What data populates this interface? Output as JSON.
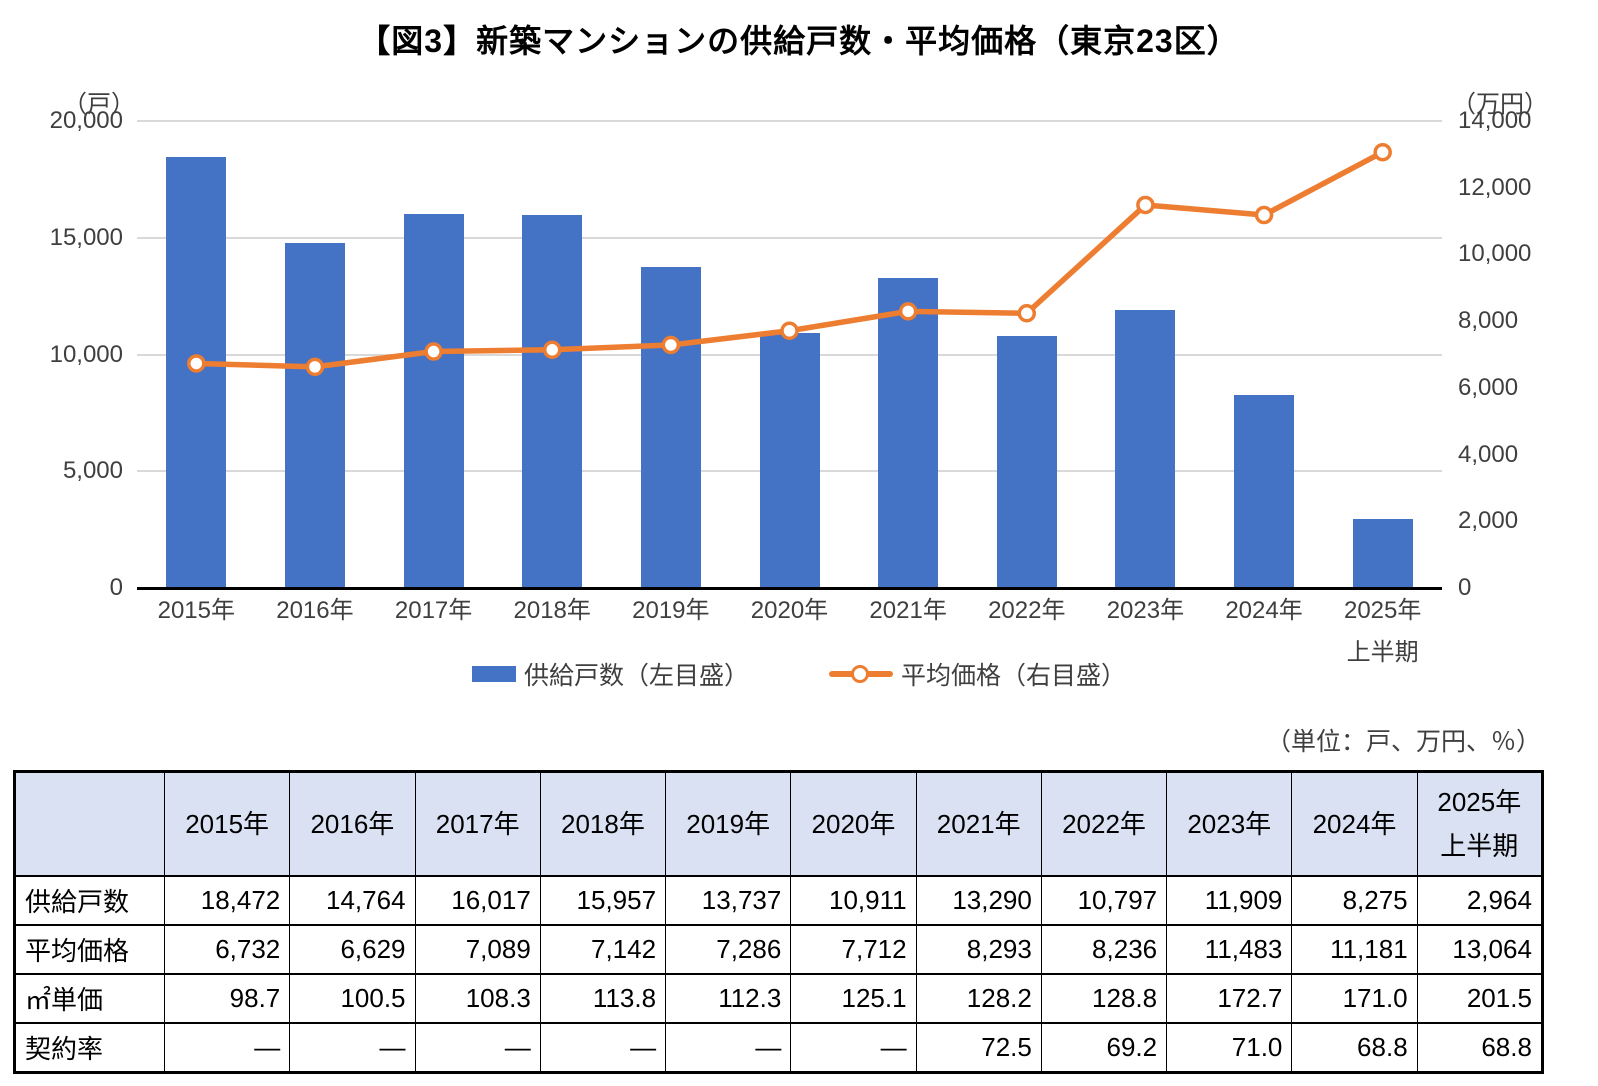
{
  "title": "【図3】新築マンションの供給戸数・平均価格（東京23区）",
  "chart_data": {
    "type": "combo_bar_line",
    "categories": [
      "2015年",
      "2016年",
      "2017年",
      "2018年",
      "2019年",
      "2020年",
      "2021年",
      "2022年",
      "2023年",
      "2024年",
      "2025年\n上半期"
    ],
    "series": [
      {
        "name": "供給戸数（左目盛）",
        "type": "bar",
        "axis": "left",
        "color": "#4472C4",
        "values": [
          18472,
          14764,
          16017,
          15957,
          13737,
          10911,
          13290,
          10797,
          11909,
          8275,
          2964
        ]
      },
      {
        "name": "平均価格（右目盛）",
        "type": "line",
        "axis": "right",
        "color": "#ED7D31",
        "marker": "open-circle",
        "values": [
          6732,
          6629,
          7089,
          7142,
          7286,
          7712,
          8293,
          8236,
          11483,
          11181,
          13064
        ]
      }
    ],
    "left_axis": {
      "unit": "（戸）",
      "min": 0,
      "max": 20000,
      "step": 5000
    },
    "right_axis": {
      "unit": "（万円）",
      "min": 0,
      "max": 14000,
      "step": 2000
    },
    "grid": "horizontal",
    "gridline_color": "#D9D9D9",
    "legend_position": "bottom"
  },
  "table": {
    "unit_note": "（単位：戸、万円、％）",
    "header_bg": "#D9E1F2",
    "columns": [
      "2015年",
      "2016年",
      "2017年",
      "2018年",
      "2019年",
      "2020年",
      "2021年",
      "2022年",
      "2023年",
      "2024年",
      "2025年\n上半期"
    ],
    "rows": [
      {
        "label": "供給戸数",
        "values": [
          "18,472",
          "14,764",
          "16,017",
          "15,957",
          "13,737",
          "10,911",
          "13,290",
          "10,797",
          "11,909",
          "8,275",
          "2,964"
        ]
      },
      {
        "label": "平均価格",
        "values": [
          "6,732",
          "6,629",
          "7,089",
          "7,142",
          "7,286",
          "7,712",
          "8,293",
          "8,236",
          "11,483",
          "11,181",
          "13,064"
        ]
      },
      {
        "label": "㎡単価",
        "values": [
          "98.7",
          "100.5",
          "108.3",
          "113.8",
          "112.3",
          "125.1",
          "128.2",
          "128.8",
          "172.7",
          "171.0",
          "201.5"
        ]
      },
      {
        "label": "契約率",
        "values": [
          "—",
          "—",
          "—",
          "—",
          "—",
          "—",
          "72.5",
          "69.2",
          "71.0",
          "68.8",
          "68.8"
        ]
      }
    ]
  }
}
